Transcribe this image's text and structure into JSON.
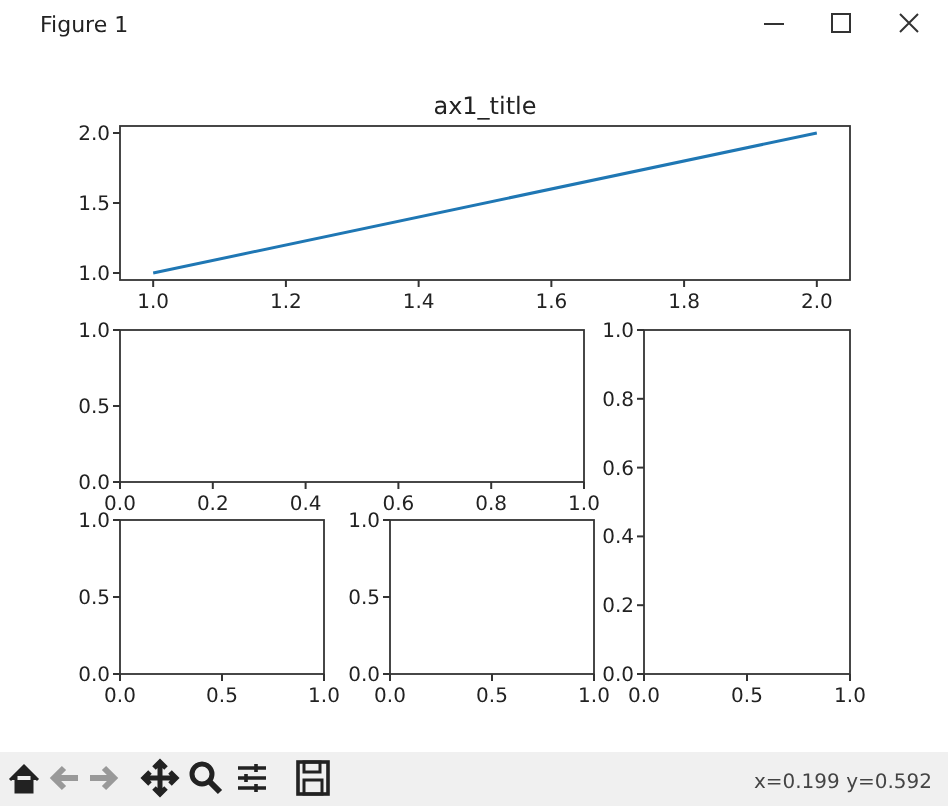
{
  "chart_data": [
    {
      "type": "line",
      "title": "ax1_title",
      "x": [
        1.0,
        2.0
      ],
      "series": [
        {
          "color": "#1f77b4",
          "values": [
            1.0,
            2.0
          ]
        }
      ],
      "xlim": [
        0.95,
        2.05
      ],
      "ylim": [
        0.95,
        2.05
      ],
      "xticks": [
        {
          "value": 1,
          "label": "1.0"
        },
        1.2,
        1.4,
        1.6,
        1.8,
        {
          "value": 2,
          "label": "2.0"
        }
      ],
      "yticks": [
        {
          "value": 1,
          "label": "1.0"
        },
        1.5,
        {
          "value": 2,
          "label": "2.0"
        }
      ],
      "annotations": [
        "Figure 1",
        "x=0.199 y=0.592"
      ]
    },
    {
      "type": "line",
      "xlim": [
        0,
        1
      ],
      "ylim": [
        0,
        1
      ],
      "xticks": [
        {
          "value": 0,
          "label": "0.0"
        },
        0.2,
        0.4,
        0.6,
        0.8,
        {
          "value": 1,
          "label": "1.0"
        }
      ],
      "yticks": [
        {
          "value": 0,
          "label": "0.0"
        },
        0.5,
        {
          "value": 1,
          "label": "1.0"
        }
      ]
    },
    {
      "type": "line",
      "xlim": [
        0,
        1
      ],
      "ylim": [
        0,
        1
      ],
      "xticks": [
        {
          "value": 0,
          "label": "0.0"
        },
        0.5,
        {
          "value": 1,
          "label": "1.0"
        }
      ],
      "yticks": [
        {
          "value": 0,
          "label": "0.0"
        },
        0.2,
        0.4,
        0.6,
        0.8,
        {
          "value": 1,
          "label": "1.0"
        }
      ]
    },
    {
      "type": "line",
      "xlim": [
        0,
        1
      ],
      "ylim": [
        0,
        1
      ],
      "xticks": [
        {
          "value": 0,
          "label": "0.0"
        },
        0.5,
        {
          "value": 1,
          "label": "1.0"
        }
      ],
      "yticks": [
        {
          "value": 0,
          "label": "0.0"
        },
        0.5,
        {
          "value": 1,
          "label": "1.0"
        }
      ]
    },
    {
      "type": "line",
      "xlim": [
        0,
        1
      ],
      "ylim": [
        0,
        1
      ],
      "xticks": [
        {
          "value": 0,
          "label": "0.0"
        },
        0.5,
        {
          "value": 1,
          "label": "1.0"
        }
      ],
      "yticks": [
        {
          "value": 0,
          "label": "0.0"
        },
        0.5,
        {
          "value": 1,
          "label": "1.0"
        }
      ]
    }
  ]
}
